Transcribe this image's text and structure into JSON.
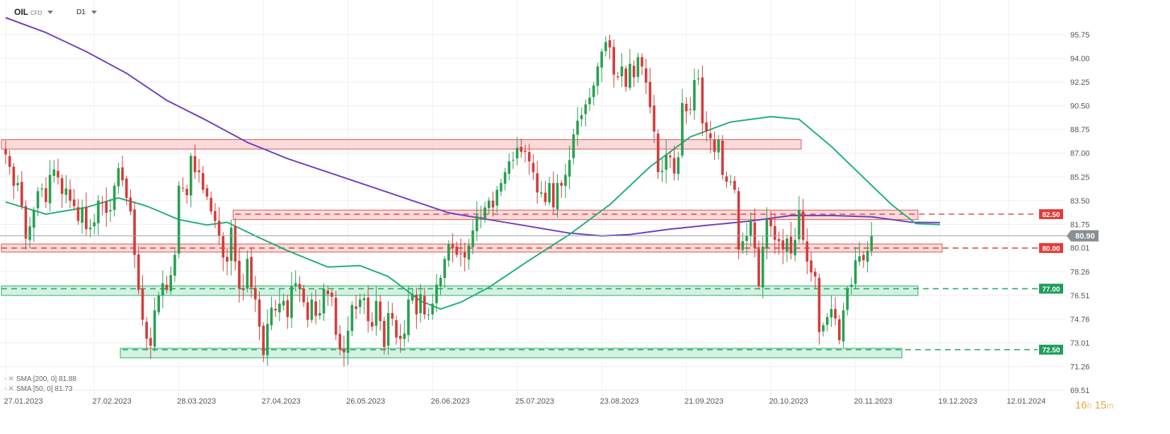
{
  "header": {
    "symbol": "OIL",
    "instrument_type": "CFD",
    "timeframe": "D1"
  },
  "legend": [
    {
      "label": "SMA [200, 0] 81.88",
      "color": "#6c3fc0"
    },
    {
      "label": "SMA [50, 0] 81.73",
      "color": "#1fb07a"
    }
  ],
  "countdown": {
    "hours": "16",
    "h_unit": "h",
    "minutes": "15",
    "m_unit": "m"
  },
  "colors": {
    "bull": "#26a050",
    "bear": "#d63a3a",
    "sma200": "#6c3fc0",
    "sma50": "#1fb07a",
    "zone_red_fill": "#f9d4d4",
    "zone_red_stroke": "#e05555",
    "zone_green_fill": "#cdeedd",
    "zone_green_stroke": "#2cae6e",
    "current_price_bg": "#8a8f96"
  },
  "chart_data": {
    "type": "candlestick",
    "ylim": [
      69.51,
      97.6
    ],
    "y_ticks": [
      "95.75",
      "94.00",
      "92.25",
      "90.50",
      "88.75",
      "87.00",
      "85.25",
      "83.50",
      "81.75",
      "80.01",
      "78.26",
      "76.51",
      "74.76",
      "73.01",
      "71.26",
      "69.51"
    ],
    "x_ticks": [
      {
        "label": "27.01.2023",
        "index": 0
      },
      {
        "label": "27.02.2023",
        "index": 22
      },
      {
        "label": "28.03.2023",
        "index": 43
      },
      {
        "label": "27.04.2023",
        "index": 64
      },
      {
        "label": "26.05.2023",
        "index": 85
      },
      {
        "label": "26.06.2023",
        "index": 106
      },
      {
        "label": "25.07.2023",
        "index": 127
      },
      {
        "label": "23.08.2023",
        "index": 148
      },
      {
        "label": "21.09.2023",
        "index": 169
      },
      {
        "label": "20.10.2023",
        "index": 190
      },
      {
        "label": "20.11.2023",
        "index": 211
      },
      {
        "label": "19.12.2023",
        "index": 232
      },
      {
        "label": "12.01.2024",
        "index": 249
      }
    ],
    "current_price": "80.90",
    "zones": [
      {
        "color": "red",
        "low": 87.3,
        "high": 88.0,
        "start": 0,
        "end": 197
      },
      {
        "color": "red",
        "low": 82.1,
        "high": 82.8,
        "start": 57,
        "end": 226
      },
      {
        "color": "red",
        "low": 79.7,
        "high": 80.3,
        "start": 0,
        "end": 232
      },
      {
        "color": "green",
        "low": 76.5,
        "high": 77.2,
        "start": 0,
        "end": 226
      },
      {
        "color": "green",
        "low": 71.9,
        "high": 72.6,
        "start": 29,
        "end": 222
      }
    ],
    "levels": [
      {
        "label": "82.50",
        "value": 82.5,
        "color": "red",
        "start": 57
      },
      {
        "label": "80.00",
        "value": 80.0,
        "color": "red",
        "start": 0
      },
      {
        "label": "77.00",
        "value": 77.0,
        "color": "green",
        "start": 0
      },
      {
        "label": "72.50",
        "value": 72.5,
        "color": "green",
        "start": 29
      }
    ],
    "closes": [
      86.9,
      86.0,
      84.6,
      84.8,
      83.1,
      80.7,
      81.6,
      82.8,
      84.2,
      84.4,
      83.4,
      85.4,
      85.8,
      85.2,
      84.0,
      84.4,
      83.5,
      83.1,
      82.0,
      83.0,
      81.4,
      81.5,
      81.9,
      83.5,
      83.3,
      82.6,
      82.8,
      84.6,
      85.9,
      85.0,
      83.7,
      82.7,
      79.5,
      76.9,
      74.7,
      73.3,
      72.8,
      75.4,
      76.5,
      77.4,
      76.9,
      78.0,
      79.5,
      84.6,
      84.4,
      83.9,
      86.8,
      85.6,
      85.6,
      84.3,
      83.8,
      82.7,
      82.0,
      80.9,
      79.3,
      79.0,
      81.5,
      79.0,
      77.0,
      76.9,
      79.2,
      77.1,
      76.2,
      74.2,
      72.1,
      74.4,
      75.6,
      75.4,
      75.9,
      76.1,
      74.9,
      77.2,
      77.4,
      77.0,
      76.0,
      74.7,
      76.2,
      75.0,
      75.2,
      77.0,
      76.6,
      76.4,
      73.6,
      72.5,
      72.3,
      73.9,
      75.8,
      75.5,
      76.2,
      76.3,
      74.6,
      74.2,
      76.1,
      74.6,
      72.7,
      75.2,
      74.8,
      73.4,
      73.3,
      73.7,
      76.2,
      76.6,
      75.1,
      76.6,
      75.1,
      75.1,
      75.9,
      77.3,
      77.8,
      79.2,
      80.3,
      80.0,
      79.5,
      79.6,
      79.3,
      80.2,
      81.3,
      82.4,
      82.3,
      83.0,
      83.5,
      83.0,
      84.3,
      84.8,
      85.6,
      86.4,
      86.5,
      87.4,
      87.1,
      87.1,
      86.4,
      85.6,
      84.1,
      84.1,
      83.4,
      84.8,
      83.0,
      84.8,
      84.6,
      85.4,
      86.5,
      88.4,
      89.4,
      89.8,
      90.6,
      91.1,
      92.0,
      93.4,
      94.5,
      95.2,
      94.8,
      92.8,
      92.6,
      93.4,
      91.9,
      93.6,
      92.6,
      94.1,
      93.4,
      92.2,
      90.4,
      88.6,
      85.6,
      85.7,
      86.9,
      86.7,
      85.5,
      86.7,
      90.7,
      90.1,
      90.2,
      92.4,
      92.5,
      89.2,
      88.6,
      88.1,
      87.1,
      88.0,
      85.4,
      84.9,
      84.9,
      84.3,
      79.9,
      80.5,
      80.9,
      82.0,
      80.0,
      77.2,
      80.1,
      82.1,
      81.6,
      80.6,
      80.5,
      79.9,
      80.7,
      79.6,
      80.6,
      82.8,
      80.6,
      79.0,
      78.2,
      77.9,
      73.8,
      74.3,
      74.9,
      75.5,
      74.8,
      73.2,
      75.4,
      77.0,
      77.3,
      79.1,
      79.4,
      79.1,
      79.8,
      80.9
    ],
    "sma200": [
      {
        "i": 0,
        "v": 97.0
      },
      {
        "i": 10,
        "v": 95.9
      },
      {
        "i": 20,
        "v": 94.5
      },
      {
        "i": 30,
        "v": 92.9
      },
      {
        "i": 40,
        "v": 90.9
      },
      {
        "i": 50,
        "v": 89.4
      },
      {
        "i": 60,
        "v": 87.8
      },
      {
        "i": 70,
        "v": 86.6
      },
      {
        "i": 80,
        "v": 85.6
      },
      {
        "i": 90,
        "v": 84.6
      },
      {
        "i": 100,
        "v": 83.6
      },
      {
        "i": 110,
        "v": 82.6
      },
      {
        "i": 120,
        "v": 82.1
      },
      {
        "i": 130,
        "v": 81.6
      },
      {
        "i": 140,
        "v": 81.1
      },
      {
        "i": 148,
        "v": 80.9
      },
      {
        "i": 155,
        "v": 81.0
      },
      {
        "i": 165,
        "v": 81.4
      },
      {
        "i": 175,
        "v": 81.7
      },
      {
        "i": 185,
        "v": 82.0
      },
      {
        "i": 195,
        "v": 82.4
      },
      {
        "i": 205,
        "v": 82.4
      },
      {
        "i": 215,
        "v": 82.3
      },
      {
        "i": 225,
        "v": 81.9
      },
      {
        "i": 232,
        "v": 81.88
      }
    ],
    "sma50": [
      {
        "i": 0,
        "v": 83.4
      },
      {
        "i": 10,
        "v": 82.5
      },
      {
        "i": 20,
        "v": 83.0
      },
      {
        "i": 28,
        "v": 83.7
      },
      {
        "i": 35,
        "v": 83.1
      },
      {
        "i": 43,
        "v": 82.1
      },
      {
        "i": 50,
        "v": 81.7
      },
      {
        "i": 55,
        "v": 81.9
      },
      {
        "i": 62,
        "v": 80.9
      },
      {
        "i": 70,
        "v": 79.8
      },
      {
        "i": 80,
        "v": 78.6
      },
      {
        "i": 88,
        "v": 78.7
      },
      {
        "i": 95,
        "v": 77.9
      },
      {
        "i": 103,
        "v": 76.1
      },
      {
        "i": 108,
        "v": 75.5
      },
      {
        "i": 113,
        "v": 76.0
      },
      {
        "i": 120,
        "v": 77.1
      },
      {
        "i": 130,
        "v": 79.1
      },
      {
        "i": 140,
        "v": 81.0
      },
      {
        "i": 150,
        "v": 83.2
      },
      {
        "i": 160,
        "v": 86.0
      },
      {
        "i": 170,
        "v": 88.2
      },
      {
        "i": 180,
        "v": 89.3
      },
      {
        "i": 190,
        "v": 89.7
      },
      {
        "i": 197,
        "v": 89.5
      },
      {
        "i": 205,
        "v": 87.5
      },
      {
        "i": 213,
        "v": 85.2
      },
      {
        "i": 220,
        "v": 83.2
      },
      {
        "i": 226,
        "v": 81.8
      },
      {
        "i": 232,
        "v": 81.73
      }
    ]
  }
}
